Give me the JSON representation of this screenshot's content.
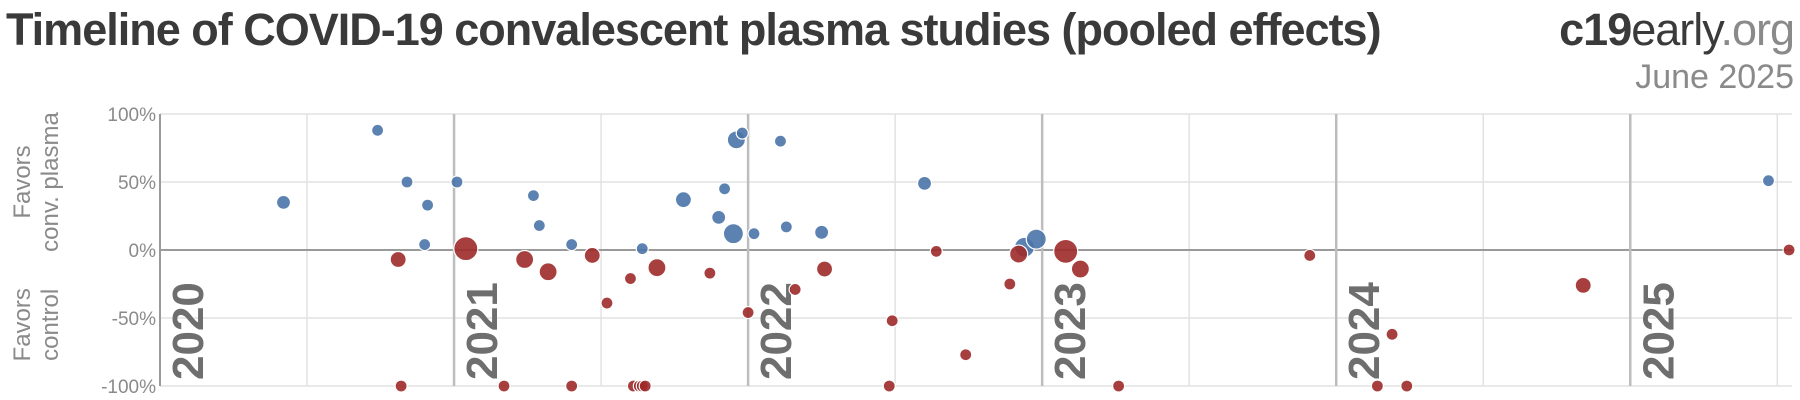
{
  "header": {
    "title": "Timeline of COVID-19 convalescent plasma studies (pooled effects)",
    "brand_bold": "c19",
    "brand_mid": "early",
    "brand_tail": ".org",
    "date": "June 2025"
  },
  "chart_data": {
    "type": "scatter",
    "xlim": [
      2020.0,
      2025.55
    ],
    "ylim": [
      -100,
      100
    ],
    "y_ticks": [
      100,
      50,
      0,
      -50,
      -100
    ],
    "y_tick_labels": [
      "100%",
      "50%",
      "0%",
      "-50%",
      "-100%"
    ],
    "year_labels": [
      "2020",
      "2021",
      "2022",
      "2023",
      "2024",
      "2025"
    ],
    "y_group_labels": {
      "top": [
        "Favors",
        "conv. plasma"
      ],
      "bottom": [
        "Favors",
        "control"
      ]
    },
    "colors": {
      "positive": "#4a74aa",
      "negative": "#9e2a2a",
      "axis": "#9a9a9a",
      "grid": "#e2e2e2",
      "year_line": "#bdbdbd",
      "year_text": "#6e6e6e"
    },
    "series": [
      {
        "color_key": "positive",
        "points": [
          {
            "x": 2020.42,
            "y": 35,
            "r": 7
          },
          {
            "x": 2020.74,
            "y": 88,
            "r": 6
          },
          {
            "x": 2020.84,
            "y": 50,
            "r": 6
          },
          {
            "x": 2020.9,
            "y": 4,
            "r": 6
          },
          {
            "x": 2020.91,
            "y": 33,
            "r": 6
          },
          {
            "x": 2021.01,
            "y": 50,
            "r": 6
          },
          {
            "x": 2021.27,
            "y": 40,
            "r": 6
          },
          {
            "x": 2021.29,
            "y": 18,
            "r": 6
          },
          {
            "x": 2021.4,
            "y": 4,
            "r": 6
          },
          {
            "x": 2021.64,
            "y": 1,
            "r": 6
          },
          {
            "x": 2021.78,
            "y": 37,
            "r": 8
          },
          {
            "x": 2021.9,
            "y": 24,
            "r": 7
          },
          {
            "x": 2021.92,
            "y": 45,
            "r": 6
          },
          {
            "x": 2021.95,
            "y": 12,
            "r": 10
          },
          {
            "x": 2021.96,
            "y": 81,
            "r": 9
          },
          {
            "x": 2021.98,
            "y": 86,
            "r": 6
          },
          {
            "x": 2022.02,
            "y": 12,
            "r": 6
          },
          {
            "x": 2022.11,
            "y": 80,
            "r": 6
          },
          {
            "x": 2022.13,
            "y": 17,
            "r": 6
          },
          {
            "x": 2022.25,
            "y": 13,
            "r": 7
          },
          {
            "x": 2022.6,
            "y": 49,
            "r": 7
          },
          {
            "x": 2022.94,
            "y": 2,
            "r": 10
          },
          {
            "x": 2022.98,
            "y": 8,
            "r": 10
          },
          {
            "x": 2025.47,
            "y": 51,
            "r": 6
          }
        ]
      },
      {
        "color_key": "negative",
        "points": [
          {
            "x": 2020.81,
            "y": -7,
            "r": 8
          },
          {
            "x": 2020.82,
            "y": -100,
            "r": 6
          },
          {
            "x": 2021.04,
            "y": 1,
            "r": 12
          },
          {
            "x": 2021.17,
            "y": -100,
            "r": 6
          },
          {
            "x": 2021.24,
            "y": -7,
            "r": 9
          },
          {
            "x": 2021.32,
            "y": -16,
            "r": 9
          },
          {
            "x": 2021.4,
            "y": -100,
            "r": 6
          },
          {
            "x": 2021.47,
            "y": -4,
            "r": 8
          },
          {
            "x": 2021.52,
            "y": -39,
            "r": 6
          },
          {
            "x": 2021.6,
            "y": -21,
            "r": 6
          },
          {
            "x": 2021.61,
            "y": -100,
            "r": 6
          },
          {
            "x": 2021.63,
            "y": -100,
            "r": 6
          },
          {
            "x": 2021.64,
            "y": -100,
            "r": 6
          },
          {
            "x": 2021.65,
            "y": -100,
            "r": 6
          },
          {
            "x": 2021.69,
            "y": -13,
            "r": 9
          },
          {
            "x": 2021.87,
            "y": -17,
            "r": 6
          },
          {
            "x": 2022.0,
            "y": -46,
            "r": 6
          },
          {
            "x": 2022.16,
            "y": -29,
            "r": 6
          },
          {
            "x": 2022.26,
            "y": -14,
            "r": 8
          },
          {
            "x": 2022.48,
            "y": -100,
            "r": 6
          },
          {
            "x": 2022.49,
            "y": -52,
            "r": 6
          },
          {
            "x": 2022.64,
            "y": -1,
            "r": 6
          },
          {
            "x": 2022.74,
            "y": -77,
            "r": 6
          },
          {
            "x": 2022.89,
            "y": -25,
            "r": 6
          },
          {
            "x": 2022.92,
            "y": -3,
            "r": 9
          },
          {
            "x": 2023.08,
            "y": -1,
            "r": 12
          },
          {
            "x": 2023.13,
            "y": -14,
            "r": 9
          },
          {
            "x": 2023.26,
            "y": -100,
            "r": 6
          },
          {
            "x": 2023.91,
            "y": -4,
            "r": 6
          },
          {
            "x": 2024.14,
            "y": -100,
            "r": 6
          },
          {
            "x": 2024.19,
            "y": -62,
            "r": 6
          },
          {
            "x": 2024.24,
            "y": -100,
            "r": 6
          },
          {
            "x": 2024.84,
            "y": -26,
            "r": 8
          },
          {
            "x": 2025.54,
            "y": 0,
            "r": 6
          }
        ]
      }
    ]
  }
}
